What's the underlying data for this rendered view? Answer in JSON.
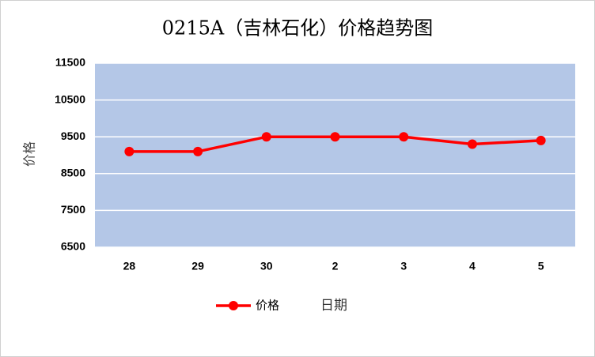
{
  "chart_data": {
    "type": "line",
    "title": "0215A（吉林石化）价格趋势图",
    "x_label": "日期",
    "y_label": "价格",
    "categories": [
      "28",
      "29",
      "30",
      "2",
      "3",
      "4",
      "5"
    ],
    "series": [
      {
        "name": "价格",
        "color": "#ff0000",
        "values": [
          9100,
          9100,
          9500,
          9500,
          9500,
          9300,
          9400
        ]
      }
    ],
    "ylim": [
      6500,
      11500
    ],
    "yticks": [
      6500,
      7500,
      8500,
      9500,
      10500,
      11500
    ],
    "grid": true,
    "plot_background": "#b4c7e7",
    "legend": "bottom"
  }
}
